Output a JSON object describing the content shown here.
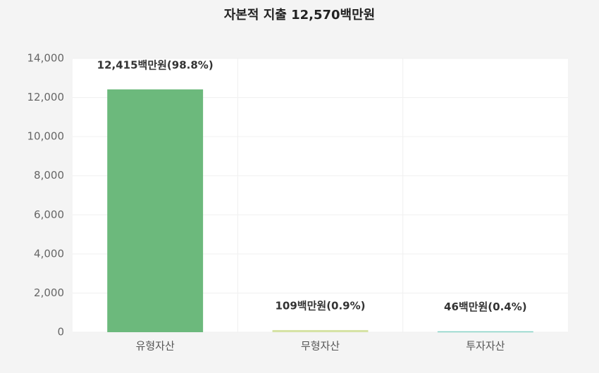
{
  "chart_data": {
    "type": "bar",
    "title": "자본적 지출 12,570백만원",
    "categories": [
      "유형자산",
      "무형자산",
      "투자자산"
    ],
    "values": [
      12415,
      109,
      46
    ],
    "value_labels": [
      "12,415백만원(98.8%)",
      "109백만원(0.9%)",
      "46백만원(0.4%)"
    ],
    "colors": [
      "#6cb97c",
      "#d6e3a5",
      "#86d3c6"
    ],
    "ylim": [
      0,
      14000
    ],
    "yticks": [
      0,
      {
        "value": 2000,
        "label": "2,000"
      },
      {
        "value": 4000,
        "label": "4,000"
      },
      {
        "value": 6000,
        "label": "6,000"
      },
      {
        "value": 8000,
        "label": "8,000"
      },
      {
        "value": 10000,
        "label": "10,000"
      },
      {
        "value": 12000,
        "label": "12,000"
      },
      {
        "value": 14000,
        "label": "14,000"
      }
    ],
    "grid": true
  }
}
